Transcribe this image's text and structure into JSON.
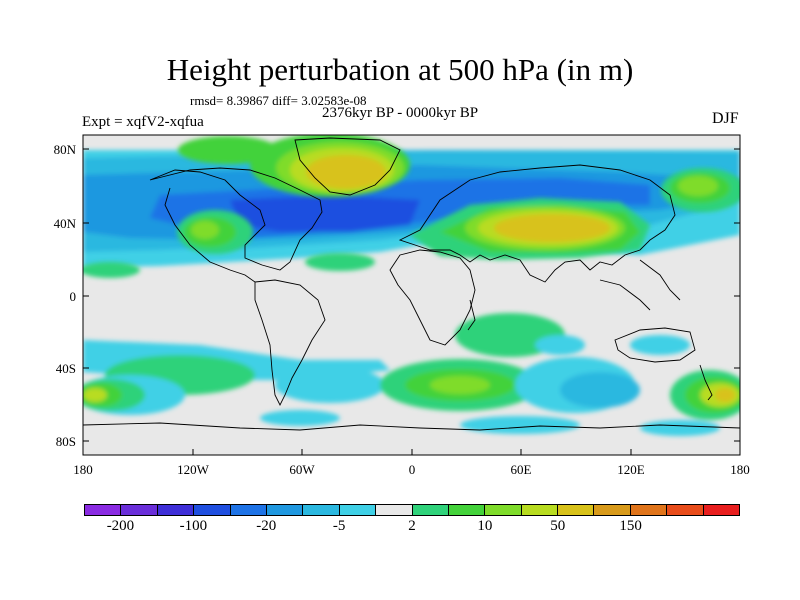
{
  "title": "Height perturbation at 500 hPa (in m)",
  "stats_text": "rmsd= 8.39867 diff= 3.02583e-08",
  "period": "2376kyr BP - 0000kyr BP",
  "experiment": "Expt = xqfV2-xqfua",
  "season": "DJF",
  "lat_ticks": [
    "80N",
    "40N",
    "0",
    "40S",
    "80S"
  ],
  "lon_ticks": [
    "180",
    "120W",
    "60W",
    "0",
    "60E",
    "120E",
    "180"
  ],
  "colorbar": {
    "colors": [
      "#8a2be2",
      "#6a2ed9",
      "#3f2fd8",
      "#1f4fe0",
      "#1e73e6",
      "#1f98e0",
      "#2bb8e0",
      "#3fd0e6",
      "#e8e8e8",
      "#2fd27a",
      "#43d23a",
      "#7fdc2a",
      "#b8dc20",
      "#d8c21a",
      "#d89a1a",
      "#e0741a",
      "#e84c1a",
      "#e81e1e"
    ],
    "labels": [
      "-200",
      "-100",
      "-20",
      "-5",
      "2",
      "10",
      "50",
      "150"
    ]
  }
}
